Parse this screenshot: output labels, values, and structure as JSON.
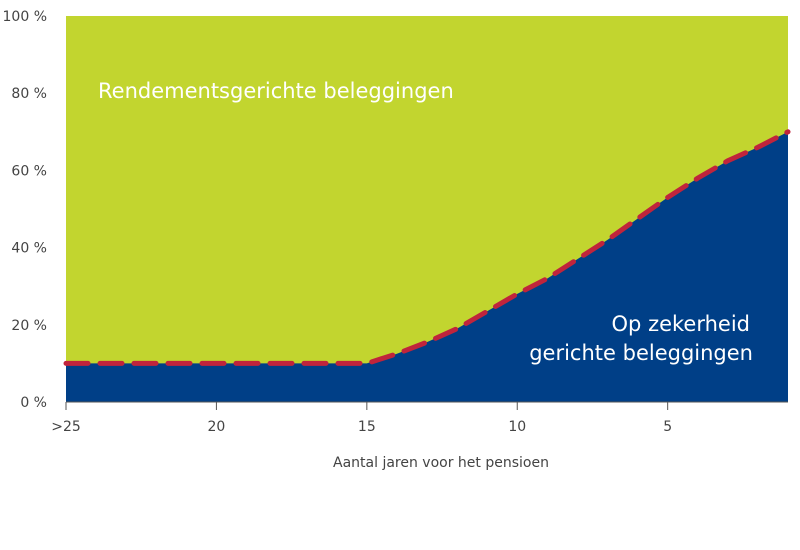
{
  "chart_data": {
    "type": "area",
    "xlabel": "Aantal jaren voor het pensioen",
    "ylabel": "",
    "y_ticks": [
      "0 %",
      "20 %",
      "40 %",
      "60 %",
      "80 %",
      "100 %"
    ],
    "x_tick_labels": [
      ">25",
      "20",
      "15",
      "10",
      "5"
    ],
    "ylim": [
      0,
      100
    ],
    "grid": false,
    "x": [
      ">25",
      24,
      23,
      22,
      21,
      20,
      19,
      18,
      17,
      16,
      15,
      14,
      13,
      12,
      11,
      10,
      9,
      8,
      7,
      6,
      5,
      4,
      3,
      2,
      1
    ],
    "series": [
      {
        "name": "Op zekerheid gerichte beleggingen",
        "color": "#003f87",
        "values": [
          10,
          10,
          10,
          10,
          10,
          10,
          10,
          10,
          10,
          10,
          10,
          12.5,
          15.5,
          19,
          23.5,
          28,
          32,
          37,
          42,
          47.5,
          53,
          58,
          62.5,
          66,
          70
        ]
      },
      {
        "name": "Rendementsgerichte beleggingen",
        "color": "#c2d52f",
        "values": [
          90,
          90,
          90,
          90,
          90,
          90,
          90,
          90,
          90,
          90,
          90,
          87.5,
          84.5,
          81,
          76.5,
          72,
          68,
          63,
          58,
          52.5,
          47,
          42,
          37.5,
          34,
          30
        ]
      }
    ],
    "boundary_line_color": "#c0243c"
  }
}
